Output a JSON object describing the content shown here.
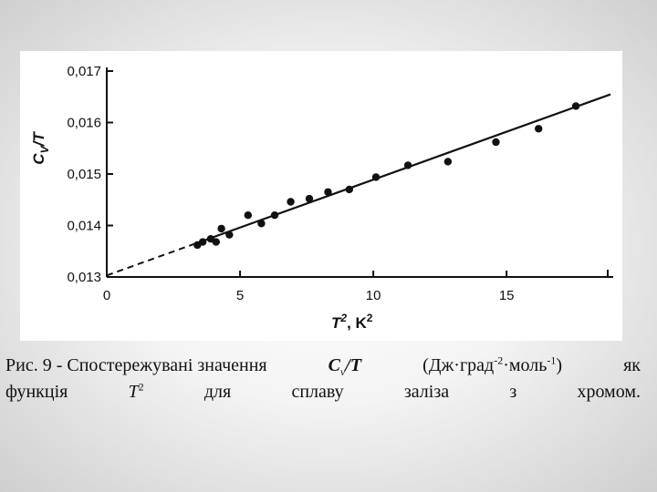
{
  "chart_data": {
    "type": "scatter",
    "xlim": [
      0,
      19
    ],
    "ylim": [
      0.013,
      0.017
    ],
    "x_ticks": [
      "0",
      "5",
      "10",
      "15"
    ],
    "y_ticks": [
      "0,013",
      "0,014",
      "0,015",
      "0,016",
      "0,017"
    ],
    "xlabel": {
      "base": "T",
      "exp": "2",
      "unit": "K",
      "unit_exp": "2"
    },
    "ylabel": {
      "base": "C",
      "sub": "V",
      "rest": "/T"
    },
    "points": [
      {
        "x": 3.4,
        "y": 0.01362
      },
      {
        "x": 3.6,
        "y": 0.01368
      },
      {
        "x": 3.9,
        "y": 0.01374
      },
      {
        "x": 4.1,
        "y": 0.01368
      },
      {
        "x": 4.3,
        "y": 0.01394
      },
      {
        "x": 4.6,
        "y": 0.01382
      },
      {
        "x": 5.3,
        "y": 0.0142
      },
      {
        "x": 5.8,
        "y": 0.01404
      },
      {
        "x": 6.3,
        "y": 0.0142
      },
      {
        "x": 6.9,
        "y": 0.01446
      },
      {
        "x": 7.6,
        "y": 0.01452
      },
      {
        "x": 8.3,
        "y": 0.01465
      },
      {
        "x": 9.1,
        "y": 0.0147
      },
      {
        "x": 10.1,
        "y": 0.01494
      },
      {
        "x": 11.3,
        "y": 0.01517
      },
      {
        "x": 12.8,
        "y": 0.01524
      },
      {
        "x": 14.6,
        "y": 0.01562
      },
      {
        "x": 16.2,
        "y": 0.01588
      },
      {
        "x": 17.6,
        "y": 0.01632
      }
    ],
    "fit_line": {
      "intercept": 0.01303,
      "slope": 0.0001861,
      "dashed_until": 3.3,
      "x_end": 18.9
    },
    "grid": false,
    "colors": {
      "ink": "#111111"
    }
  },
  "caption": {
    "line1_prefix": "Рис. 9 - Спостережувані значення",
    "symbol": "C",
    "symbol_sub": "v",
    "symbol_rest": "/T",
    "units_open": "(Дж·град",
    "units_exp1": "-2",
    "units_mid": "·моль",
    "units_exp2": "-1",
    "units_close": ")",
    "line1_suffix": "як",
    "line2": [
      "функція",
      "T",
      "2",
      "для",
      "сплаву",
      "заліза",
      "з",
      "хромом."
    ]
  }
}
